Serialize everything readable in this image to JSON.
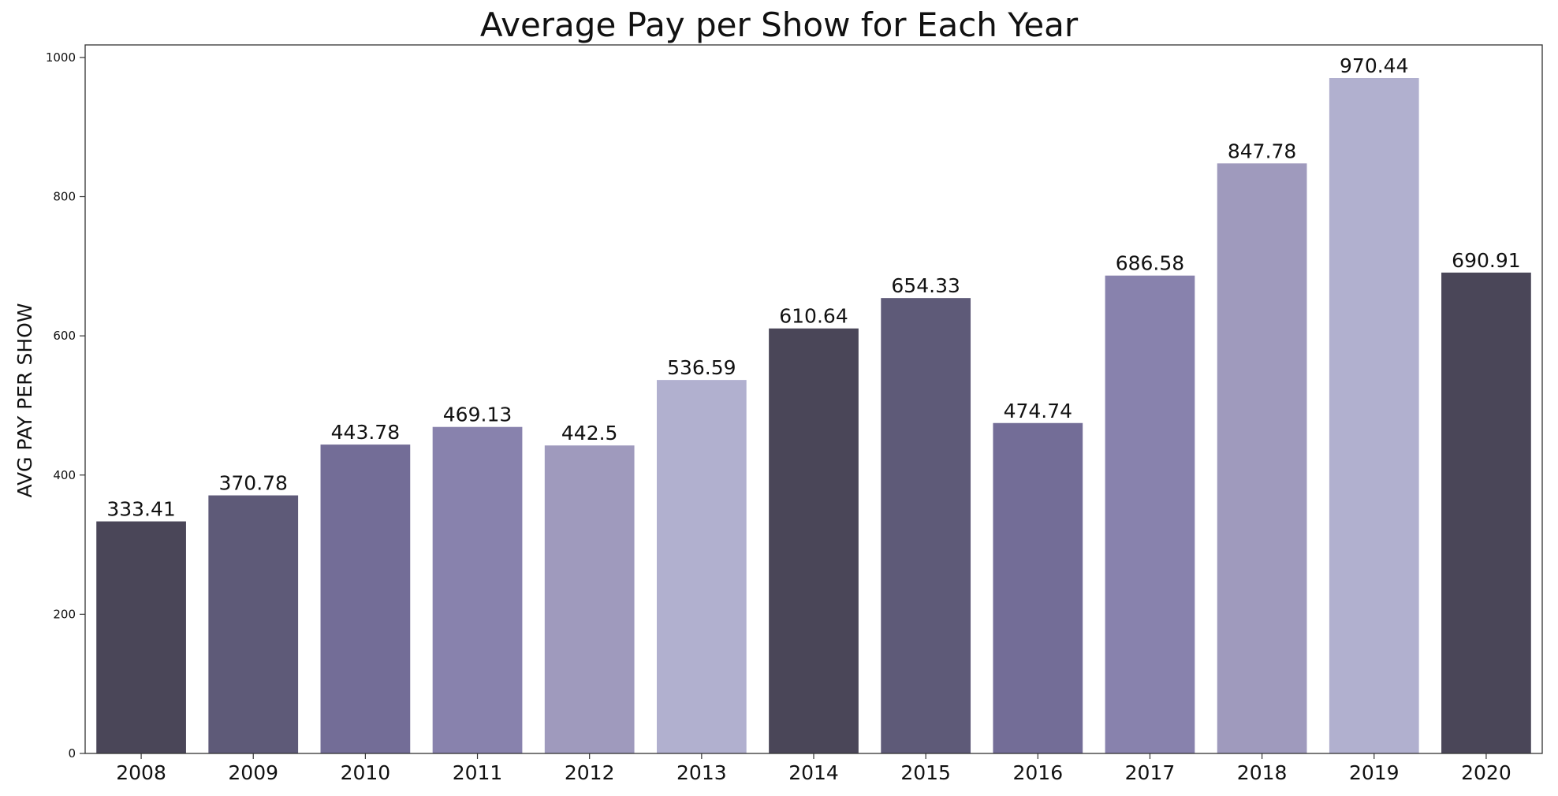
{
  "chart_data": {
    "type": "bar",
    "title": "Average Pay per Show for Each Year",
    "xlabel": "",
    "ylabel": "AVG PAY PER SHOW",
    "categories": [
      "2008",
      "2009",
      "2010",
      "2011",
      "2012",
      "2013",
      "2014",
      "2015",
      "2016",
      "2017",
      "2018",
      "2019",
      "2020"
    ],
    "values": [
      333.41,
      370.78,
      443.78,
      469.13,
      442.5,
      536.59,
      610.64,
      654.33,
      474.74,
      686.58,
      847.78,
      970.44,
      690.91
    ],
    "data_labels": [
      "333.41",
      "370.78",
      "443.78",
      "469.13",
      "442.5",
      "536.59",
      "610.64",
      "654.33",
      "474.74",
      "686.58",
      "847.78",
      "970.44",
      "690.91"
    ],
    "ylim": [
      0,
      1018
    ],
    "yticks": [
      0,
      200,
      400,
      600,
      800,
      1000
    ],
    "grid": false,
    "legend": "none",
    "bar_colors": [
      "#4a4658",
      "#5e5a78",
      "#736d97",
      "#8882ad",
      "#9f9abd",
      "#b1b0cf",
      "#4a4658",
      "#5e5a78",
      "#736d97",
      "#8882ad",
      "#9f9abd",
      "#b1b0cf",
      "#4a4658"
    ]
  }
}
